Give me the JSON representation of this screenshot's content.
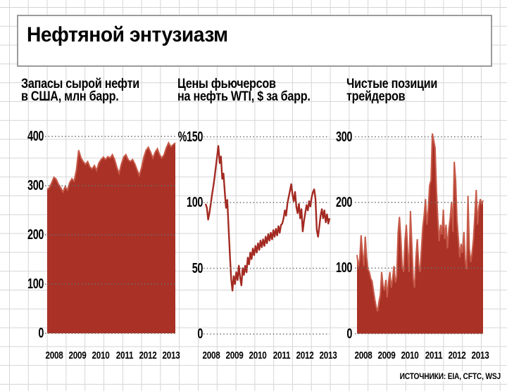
{
  "title": "Нефтяной энтузиазм",
  "source": "ИСТОЧНИКИ: EIA, CFTC, WSJ",
  "colors": {
    "area_fill": "#a93126",
    "area_edge": "#c75b4a",
    "line": "#a32a22",
    "dotted_gridline": "#6e6e6e",
    "background_grid": "#d5d5d5",
    "title_box_border": "#9b9b9b",
    "text": "#000000"
  },
  "chart_data": [
    {
      "type": "area",
      "title": "Запасы сырой нефти в США, млн барр.",
      "title_lines": [
        "Запасы сырой нефти",
        "в США, млн барр."
      ],
      "ylim": [
        0,
        400
      ],
      "grid": "dotted horizontal lines at labeled ticks",
      "legend_position": "none",
      "y_ticks": [
        {
          "label": "400",
          "value": 400
        },
        {
          "label": "300",
          "value": 300
        },
        {
          "label": "200",
          "value": 200
        },
        {
          "label": "100",
          "value": 100
        },
        {
          "label": "0",
          "value": 0
        }
      ],
      "x_tick_labels": [
        "2008",
        "2009",
        "2010",
        "2011",
        "2012",
        "2013"
      ],
      "values": [
        292,
        296,
        306,
        317,
        313,
        303,
        296,
        287,
        298,
        291,
        306,
        314,
        309,
        332,
        372,
        357,
        349,
        343,
        349,
        338,
        334,
        341,
        331,
        346,
        353,
        358,
        353,
        359,
        356,
        363,
        353,
        337,
        325,
        344,
        358,
        363,
        353,
        349,
        353,
        344,
        332,
        321,
        337,
        358,
        372,
        378,
        368,
        356,
        368,
        375,
        363,
        356,
        363,
        377,
        387,
        379,
        383,
        387
      ]
    },
    {
      "type": "line",
      "title": "Цены фьючерсов на нефть WTI, $ за барр.",
      "title_lines": [
        "Цены фьючерсов",
        "на нефть WTI, $ за барр."
      ],
      "ylim": [
        0,
        150
      ],
      "grid": "dotted horizontal lines at labeled ticks",
      "legend_position": "none",
      "y_ticks": [
        {
          "label": "%150",
          "value": 150
        },
        {
          "label": "100",
          "value": 100
        },
        {
          "label": "50",
          "value": 50
        },
        {
          "label": "0",
          "value": 0
        }
      ],
      "x_tick_labels": [
        "2008",
        "2009",
        "2010",
        "2011",
        "2012",
        "2013"
      ],
      "values": [
        99,
        96,
        87,
        92,
        99,
        106,
        112,
        119,
        127,
        135,
        143,
        130,
        135,
        118,
        122,
        108,
        96,
        102,
        80,
        60,
        42,
        33,
        44,
        38,
        47,
        41,
        52,
        43,
        37,
        50,
        45,
        52,
        47,
        58,
        53,
        62,
        57,
        65,
        60,
        67,
        62,
        69,
        64,
        71,
        66,
        72,
        67,
        74,
        69,
        76,
        71,
        77,
        72,
        79,
        74,
        80,
        75,
        82,
        77,
        83,
        84,
        88,
        94,
        90,
        99,
        104,
        109,
        114,
        106,
        101,
        108,
        97,
        92,
        99,
        88,
        95,
        78,
        86,
        92,
        98,
        94,
        101,
        97,
        104,
        108,
        110,
        103,
        79,
        74,
        82,
        90,
        95,
        88,
        94,
        85,
        91,
        84,
        88
      ]
    },
    {
      "type": "area",
      "title": "Чистые позиции трейдеров",
      "title_lines": [
        "Чистые позиции",
        "трейдеров"
      ],
      "ylim": [
        0,
        300
      ],
      "grid": "dotted horizontal lines at labeled ticks",
      "legend_position": "none",
      "y_ticks": [
        {
          "label": "300",
          "value": 300
        },
        {
          "label": "200",
          "value": 200
        },
        {
          "label": "100",
          "value": 100
        },
        {
          "label": "0",
          "value": 0
        }
      ],
      "x_tick_labels": [
        "2008",
        "2009",
        "2010",
        "2011",
        "2012",
        "2013"
      ],
      "values": [
        120,
        102,
        114,
        150,
        123,
        103,
        148,
        116,
        98,
        94,
        84,
        80,
        66,
        52,
        41,
        34,
        48,
        59,
        94,
        73,
        66,
        82,
        55,
        80,
        94,
        70,
        84,
        103,
        78,
        87,
        155,
        178,
        144,
        102,
        94,
        141,
        166,
        126,
        94,
        187,
        137,
        84,
        70,
        116,
        144,
        105,
        94,
        127,
        162,
        180,
        205,
        166,
        191,
        226,
        234,
        305,
        294,
        283,
        219,
        173,
        141,
        166,
        151,
        189,
        144,
        166,
        130,
        159,
        176,
        201,
        155,
        262,
        233,
        173,
        144,
        116,
        137,
        123,
        155,
        112,
        98,
        210,
        130,
        109,
        123,
        144,
        180,
        219,
        166,
        194,
        205,
        198,
        203
      ]
    }
  ]
}
